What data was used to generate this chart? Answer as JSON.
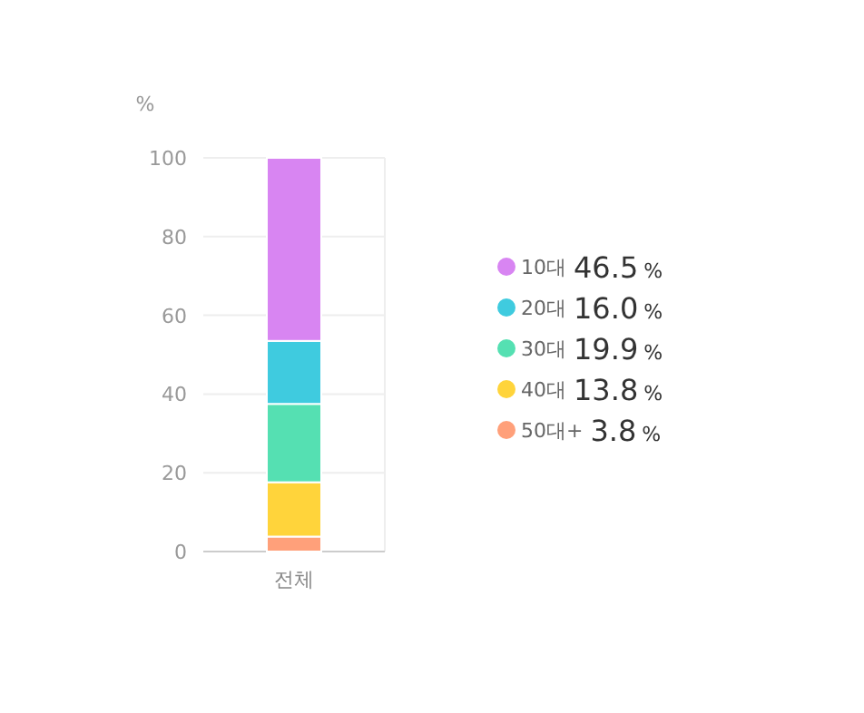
{
  "chart_data": {
    "type": "bar",
    "stacked": true,
    "ylabel": "%",
    "categories": [
      "전체"
    ],
    "ylim": [
      0,
      100
    ],
    "yticks": [
      0,
      20,
      40,
      60,
      80,
      100
    ],
    "grid": "y",
    "legend": "right",
    "annotations": [
      "3.8 %",
      "13.8 %",
      "19.9 %",
      "16.0 %",
      "46.5 %"
    ],
    "series": [
      {
        "name": "50대+",
        "color": "#ffa07a",
        "values": [
          3.8
        ]
      },
      {
        "name": "40대",
        "color": "#ffd43b",
        "values": [
          13.8
        ]
      },
      {
        "name": "30대",
        "color": "#55e0b2",
        "values": [
          19.9
        ]
      },
      {
        "name": "20대",
        "color": "#3fcbdf",
        "values": [
          16.0
        ]
      },
      {
        "name": "10대",
        "color": "#d885f2",
        "values": [
          46.5
        ]
      }
    ]
  }
}
